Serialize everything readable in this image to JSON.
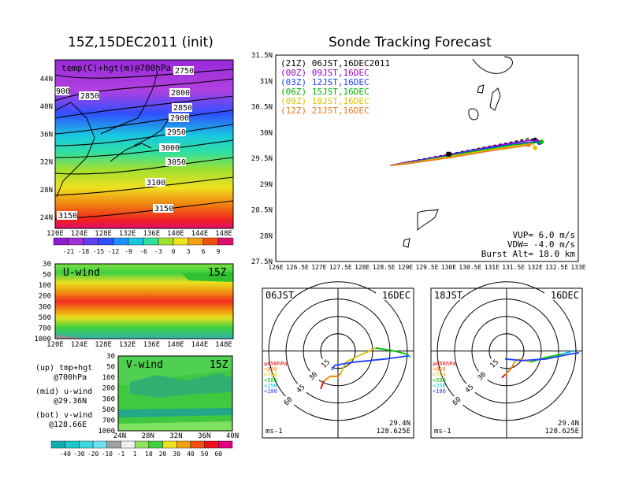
{
  "left_title": "15Z,15DEC2011 (init)",
  "right_title": "Sonde Tracking Forecast",
  "map_panel": {
    "label": "temp(C)+hgt(m)@700hPa",
    "lon_ticks": [
      "120E",
      "124E",
      "128E",
      "132E",
      "136E",
      "140E",
      "144E",
      "148E"
    ],
    "lat_ticks": [
      "44N",
      "40N",
      "36N",
      "32N",
      "28N",
      "24N"
    ],
    "contour_labels": [
      "2750",
      "900",
      "2850",
      "2800",
      "2850",
      "2900",
      "2950",
      "3000",
      "3050",
      "3100",
      "3150",
      "3150"
    ],
    "colorbar_labels": [
      "-21",
      "-18",
      "-15",
      "-12",
      "-9",
      "-6",
      "-3",
      "0",
      "3",
      "6",
      "9"
    ]
  },
  "uwind_panel": {
    "title": "U-wind",
    "time": "15Z",
    "y_ticks": [
      "30",
      "50",
      "100",
      "200",
      "300",
      "500",
      "700",
      "1000"
    ],
    "x_ticks": [
      "120E",
      "124E",
      "128E",
      "132E",
      "136E",
      "140E",
      "144E",
      "148E"
    ]
  },
  "vwind_panel": {
    "title": "V-wind",
    "time": "15Z",
    "y_ticks": [
      "30",
      "50",
      "100",
      "200",
      "300",
      "500",
      "700",
      "1000"
    ],
    "x_ticks": [
      "24N",
      "28N",
      "32N",
      "36N",
      "40N"
    ]
  },
  "legend_text": {
    "up": [
      "(up) tmp+hgt",
      "@700hPa"
    ],
    "mid": [
      "(mid) u-wind",
      "@29.36N"
    ],
    "bot": [
      "(bot) v-wind",
      "@128.66E"
    ]
  },
  "wind_colorbar_labels": [
    "-40",
    "-30",
    "-20",
    "-10",
    "-1",
    "1",
    "10",
    "20",
    "30",
    "40",
    "50",
    "60"
  ],
  "track_panel": {
    "lat_ticks": [
      "31.5N",
      "31N",
      "30.5N",
      "30N",
      "29.5N",
      "29N",
      "28.5N",
      "28N",
      "27.5N"
    ],
    "lon_ticks": [
      "126E",
      "126.5E",
      "127E",
      "127.5E",
      "128E",
      "128.5E",
      "129E",
      "129.5E",
      "130E",
      "130.5E",
      "131E",
      "131.5E",
      "132E",
      "132.5E",
      "133E"
    ],
    "legend": [
      {
        "label": "(21Z) 06JST,16DEC2011",
        "color": "#000000"
      },
      {
        "label": "(00Z) 09JST,16DEC",
        "color": "#a000c8"
      },
      {
        "label": "(03Z) 12JST,16DEC",
        "color": "#2040ff"
      },
      {
        "label": "(06Z) 15JST,16DEC",
        "color": "#00b400"
      },
      {
        "label": "(09Z) 18JST,16DEC",
        "color": "#e0c000"
      },
      {
        "label": "(12Z) 21JST,16DEC",
        "color": "#f07818"
      }
    ],
    "params": [
      "VUP= 6.0 m/s",
      "VDW= -4.0 m/s",
      "Burst Alt= 18.0 km"
    ]
  },
  "hodographs": [
    {
      "time": "06JST",
      "date": "16DEC",
      "lat": "29.4N",
      "lon": "128.625E",
      "unit": "ms-1",
      "ring_labels": [
        "15",
        "30",
        "45",
        "60"
      ]
    },
    {
      "time": "18JST",
      "date": "16DEC",
      "lat": "29.4N",
      "lon": "128.625E",
      "unit": "ms-1",
      "ring_labels": [
        "15",
        "30",
        "45",
        "60"
      ]
    }
  ],
  "hodo_legend": [
    {
      "label": "≥850hPa",
      "color": "#e00000"
    },
    {
      "label": "<850",
      "color": "#f08000"
    },
    {
      "label": "<700",
      "color": "#e0c000"
    },
    {
      "label": "<500",
      "color": "#00c000"
    },
    {
      "label": "<250",
      "color": "#00c0e0"
    },
    {
      "label": "<100",
      "color": "#2040ff"
    }
  ],
  "chart_data": {
    "type": "line",
    "title": "Sonde Tracking Forecast",
    "xlim": [
      126,
      133
    ],
    "ylim": [
      27.5,
      31.5
    ],
    "series": [
      {
        "name": "(21Z) 06JST,16DEC2011",
        "x": [
          128.65,
          129.0,
          129.5,
          130.0,
          130.5,
          131.0,
          131.5,
          131.85,
          132.0
        ],
        "y": [
          29.36,
          29.42,
          29.5,
          29.58,
          29.66,
          29.74,
          29.82,
          29.88,
          29.86
        ]
      },
      {
        "name": "(00Z) 09JST,16DEC",
        "x": [
          128.65,
          129.0,
          129.5,
          130.0,
          130.5,
          131.0,
          131.5,
          131.9,
          132.05
        ],
        "y": [
          29.36,
          29.42,
          29.49,
          29.57,
          29.65,
          29.73,
          29.8,
          29.85,
          29.83
        ]
      },
      {
        "name": "(03Z) 12JST,16DEC",
        "x": [
          128.65,
          129.0,
          129.5,
          130.0,
          130.5,
          131.0,
          131.5,
          131.95,
          132.1
        ],
        "y": [
          29.36,
          29.41,
          29.48,
          29.56,
          29.64,
          29.71,
          29.78,
          29.82,
          29.8
        ]
      },
      {
        "name": "(06Z) 15JST,16DEC",
        "x": [
          128.65,
          129.0,
          129.5,
          130.0,
          130.5,
          131.0,
          131.5,
          132.0,
          132.15
        ],
        "y": [
          29.36,
          29.4,
          29.47,
          29.54,
          29.62,
          29.69,
          29.76,
          29.8,
          29.82
        ]
      },
      {
        "name": "(09Z) 18JST,16DEC",
        "x": [
          128.65,
          129.0,
          129.5,
          130.0,
          130.5,
          131.0,
          131.5,
          131.95,
          132.0
        ],
        "y": [
          29.36,
          29.4,
          29.46,
          29.53,
          29.6,
          29.67,
          29.73,
          29.78,
          29.7
        ]
      },
      {
        "name": "(12Z) 21JST,16DEC",
        "x": [
          128.65,
          129.0,
          129.5,
          130.0,
          130.5,
          131.0,
          131.5,
          131.85,
          131.85
        ],
        "y": [
          29.36,
          29.39,
          29.45,
          29.51,
          29.58,
          29.65,
          29.71,
          29.75,
          29.76
        ]
      }
    ]
  }
}
